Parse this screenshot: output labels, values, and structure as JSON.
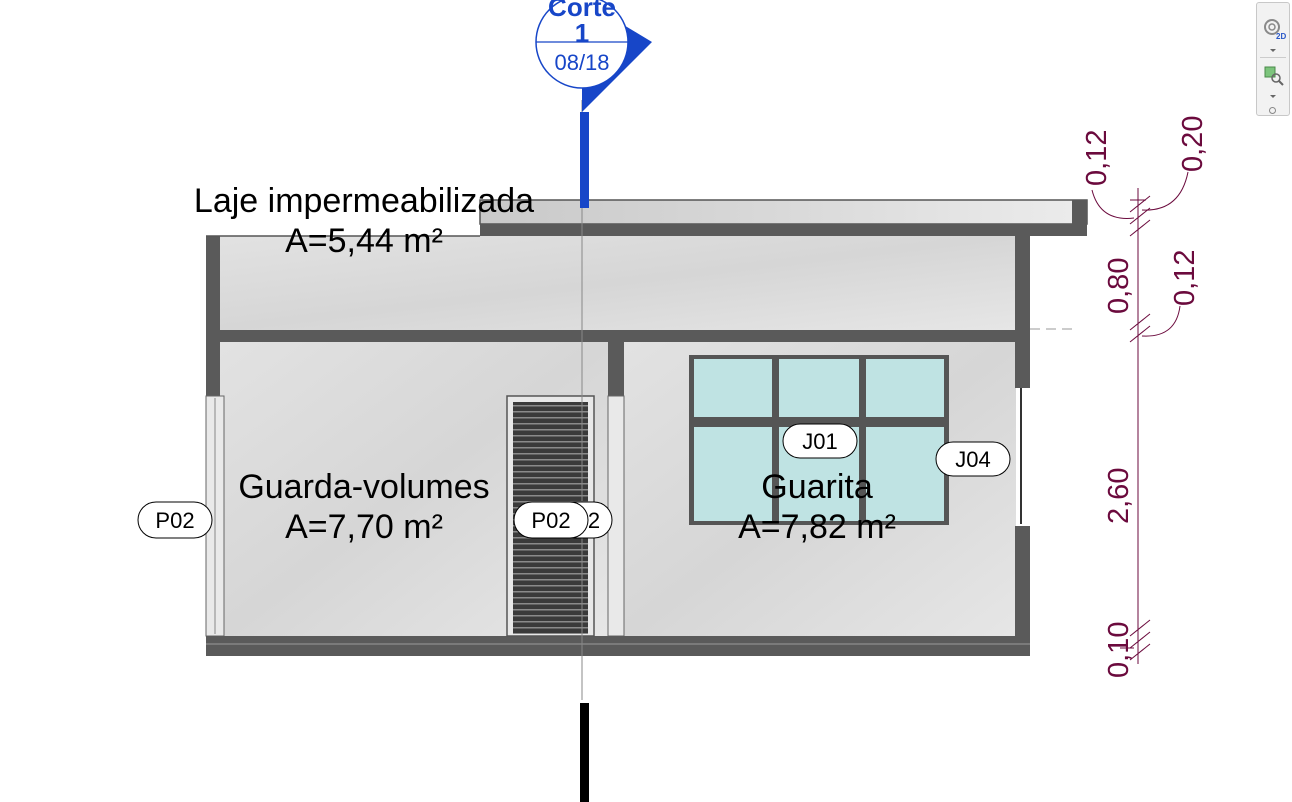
{
  "section_marker": {
    "title": "Corte",
    "number": "1",
    "sheet": "08/18"
  },
  "rooms": [
    {
      "name": "Laje impermeabilizada",
      "area": "A=5,44 m²"
    },
    {
      "name": "Guarda-volumes",
      "area": "A=7,70 m²"
    },
    {
      "name": "Guarita",
      "area": "A=7,82 m²"
    }
  ],
  "tags": {
    "door_left": "P02",
    "door_center": "P02",
    "door_center_hidden": "2",
    "window_j01": "J01",
    "window_j04": "J04"
  },
  "dimensions": {
    "top_left": "0,12",
    "top_right": "0,20",
    "slab": "0,80",
    "beam": "0,12",
    "wall": "2,60",
    "base": "0,10"
  },
  "nav_bar": {
    "view_mode": "2D",
    "icons": [
      "steering-wheel-icon",
      "zoom-region-icon"
    ]
  },
  "colors": {
    "section_blue": "#1746c8",
    "dimension": "#6b0a3d",
    "wall_dark": "#5a5a5a",
    "floor_fill": "#dcdcdc",
    "glass": "#bfe3e3"
  }
}
